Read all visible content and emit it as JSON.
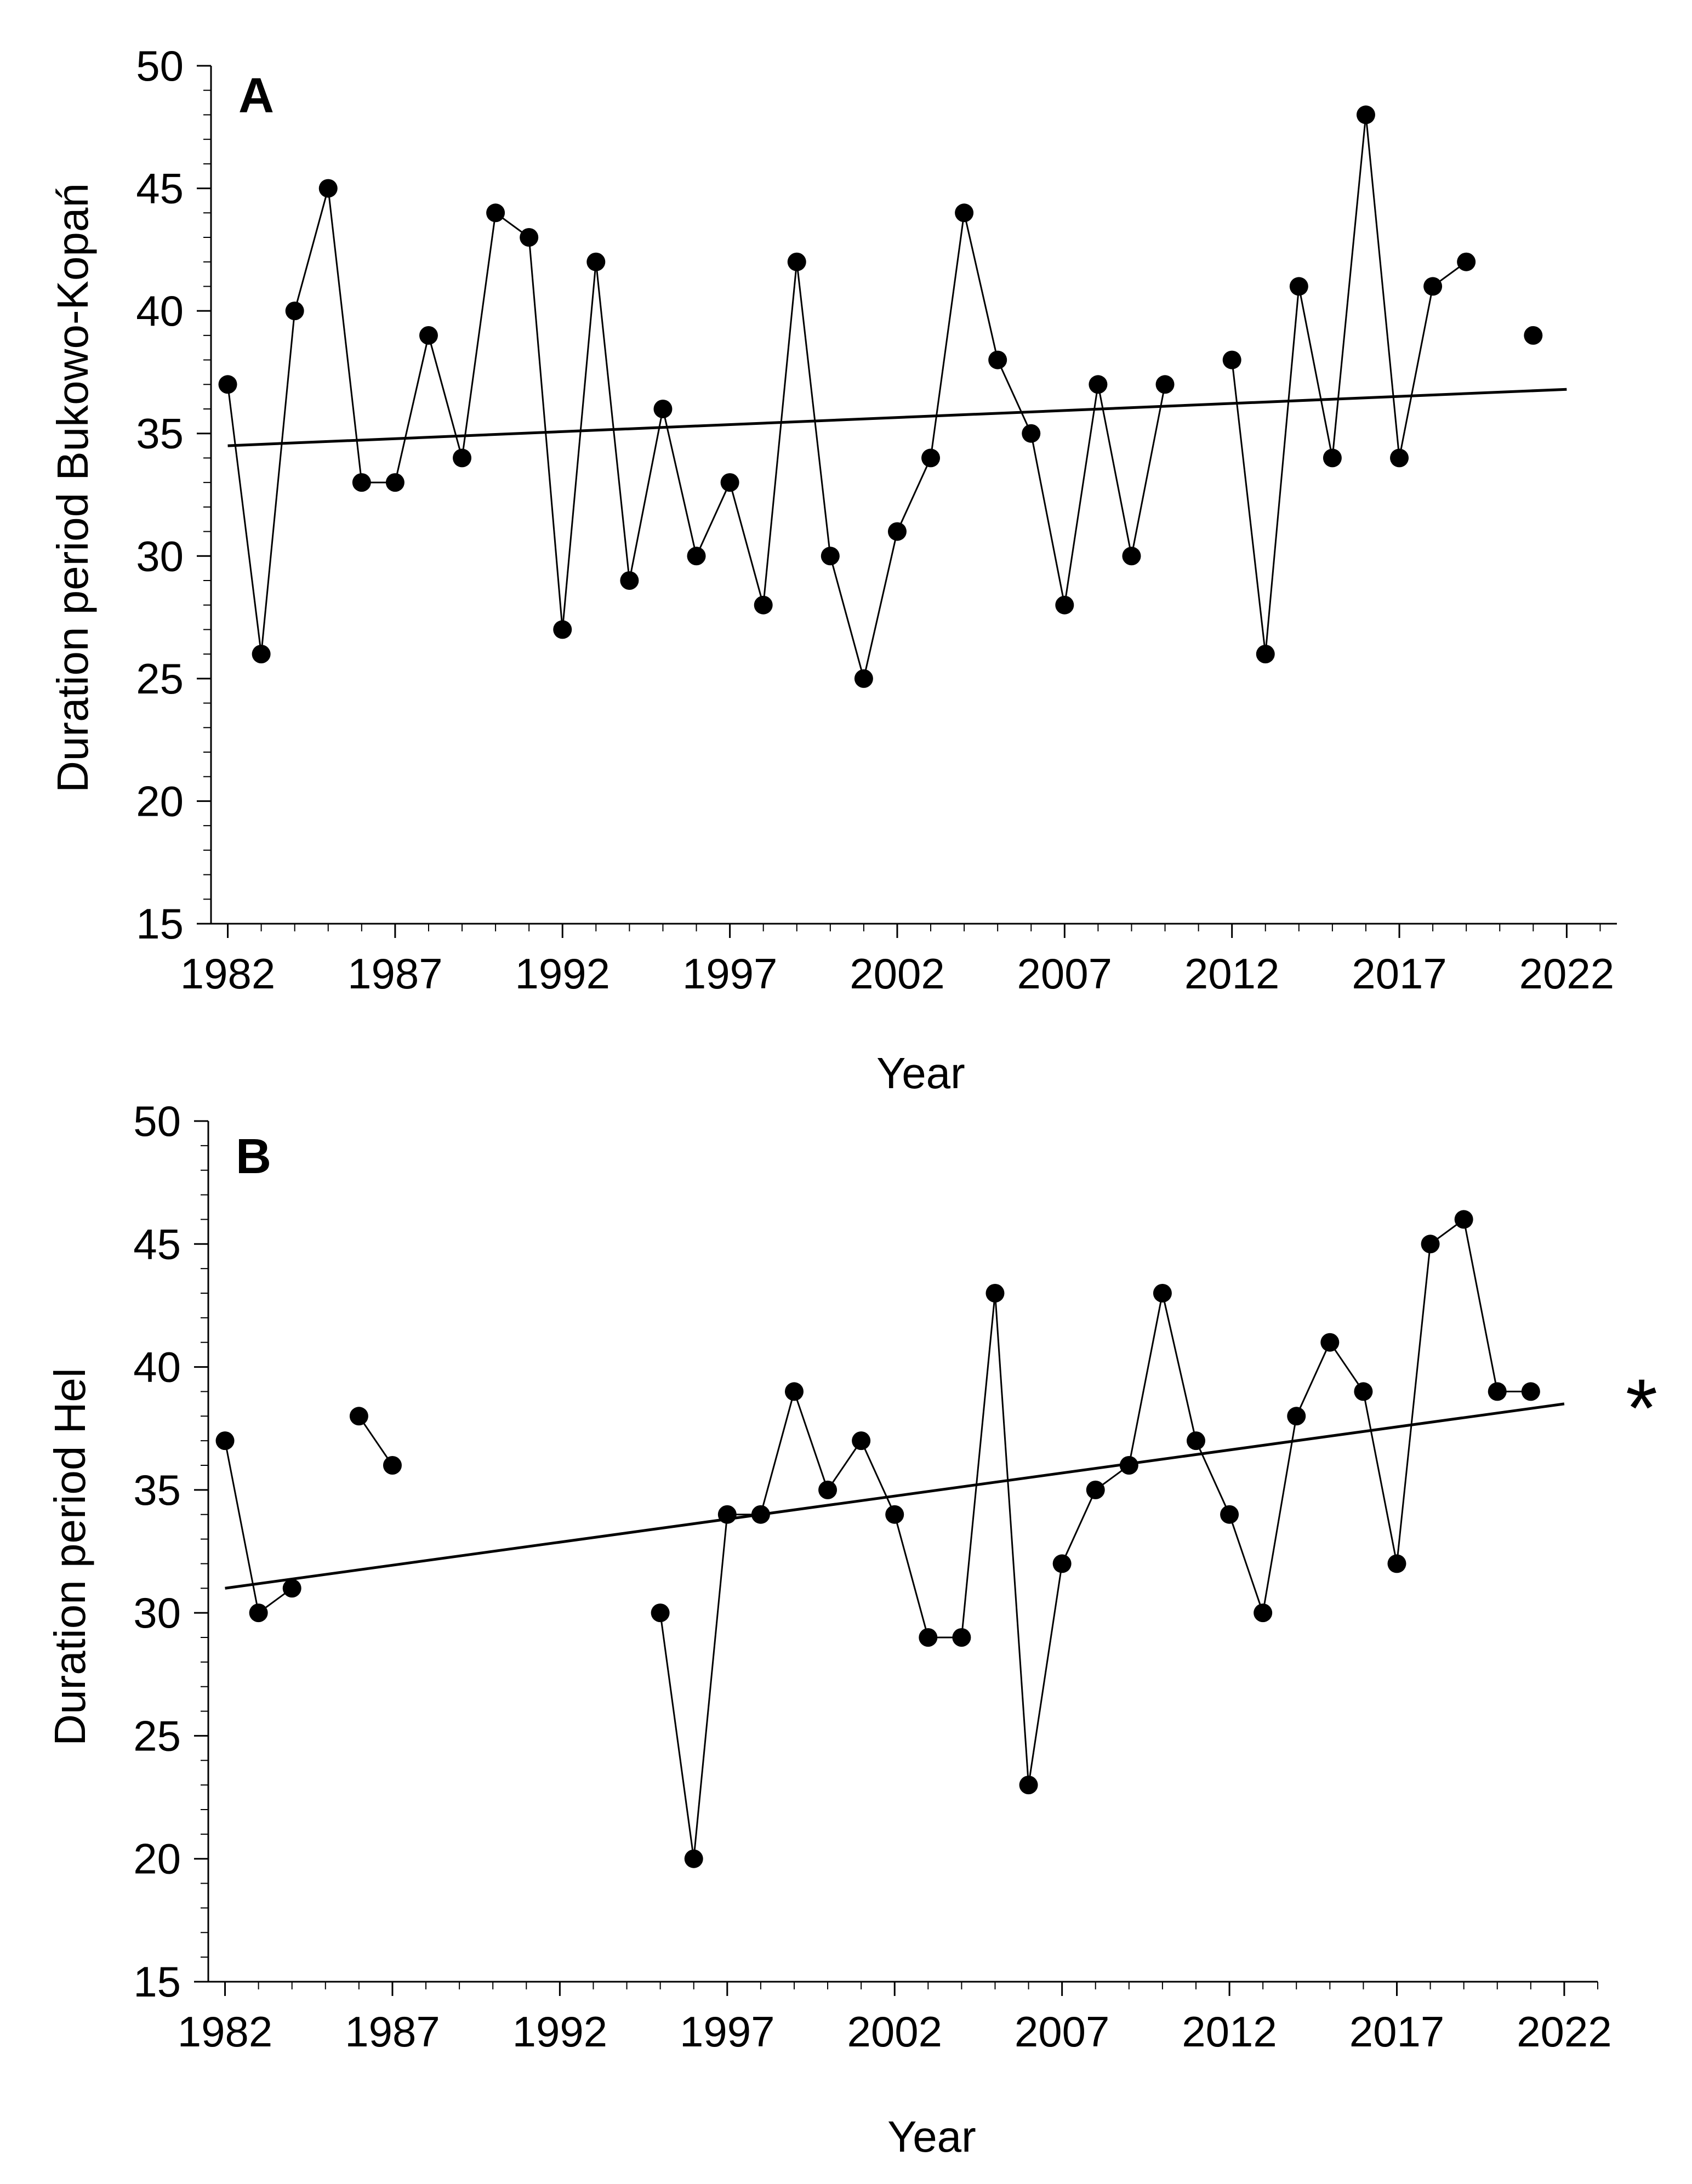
{
  "chart_data": [
    {
      "panel": "A",
      "type": "line",
      "panel_label": "A",
      "title": "",
      "xlabel": "Year",
      "ylabel": "Duration period Bukowo-Kopań",
      "xlim": [
        1981.5,
        2023.5
      ],
      "ylim": [
        15,
        50
      ],
      "x_ticks": [
        1982,
        1987,
        1992,
        1997,
        2002,
        2007,
        2012,
        2017,
        2022
      ],
      "y_ticks": [
        15,
        20,
        25,
        30,
        35,
        40,
        45,
        50
      ],
      "significance": "",
      "series": [
        {
          "name": "Bukowo-Kopań",
          "x": [
            1982,
            1983,
            1984,
            1985,
            1986,
            1987,
            1988,
            1989,
            1990,
            1991,
            1992,
            1993,
            1994,
            1995,
            1996,
            1997,
            1998,
            1999,
            2000,
            2001,
            2002,
            2003,
            2004,
            2005,
            2006,
            2007,
            2008,
            2009,
            2010,
            2011,
            2012,
            2013,
            2014,
            2015,
            2016,
            2017,
            2018,
            2019,
            2020,
            2021
          ],
          "y": [
            37,
            26,
            40,
            45,
            33,
            33,
            39,
            34,
            44,
            43,
            27,
            42,
            29,
            36,
            30,
            33,
            28,
            42,
            30,
            25,
            31,
            34,
            44,
            38,
            35,
            28,
            37,
            30,
            37,
            null,
            38,
            26,
            41,
            34,
            48,
            34,
            41,
            42,
            null,
            39
          ]
        }
      ],
      "trend": {
        "x": [
          1982,
          2022
        ],
        "y": [
          34.5,
          36.8
        ]
      }
    },
    {
      "panel": "B",
      "type": "line",
      "panel_label": "B",
      "title": "",
      "xlabel": "Year",
      "ylabel": "Duration period Hel",
      "xlim": [
        1981.5,
        2023
      ],
      "ylim": [
        15,
        50
      ],
      "x_ticks": [
        1982,
        1987,
        1992,
        1997,
        2002,
        2007,
        2012,
        2017,
        2022
      ],
      "y_ticks": [
        15,
        20,
        25,
        30,
        35,
        40,
        45,
        50
      ],
      "significance": "*",
      "series": [
        {
          "name": "Hel",
          "x": [
            1982,
            1983,
            1984,
            1985,
            1986,
            1987,
            1988,
            1989,
            1990,
            1991,
            1992,
            1993,
            1994,
            1995,
            1996,
            1997,
            1998,
            1999,
            2000,
            2001,
            2002,
            2003,
            2004,
            2005,
            2006,
            2007,
            2008,
            2009,
            2010,
            2011,
            2012,
            2013,
            2014,
            2015,
            2016,
            2017,
            2018,
            2019,
            2020,
            2021
          ],
          "y": [
            37,
            30,
            31,
            null,
            38,
            36,
            null,
            null,
            null,
            null,
            null,
            null,
            null,
            30,
            20,
            34,
            34,
            39,
            35,
            37,
            34,
            29,
            29,
            43,
            23,
            32,
            35,
            36,
            43,
            37,
            34,
            30,
            38,
            41,
            39,
            32,
            45,
            46,
            39,
            39
          ]
        }
      ],
      "trend": {
        "x": [
          1982,
          2022
        ],
        "y": [
          31.0,
          38.5
        ]
      }
    }
  ]
}
